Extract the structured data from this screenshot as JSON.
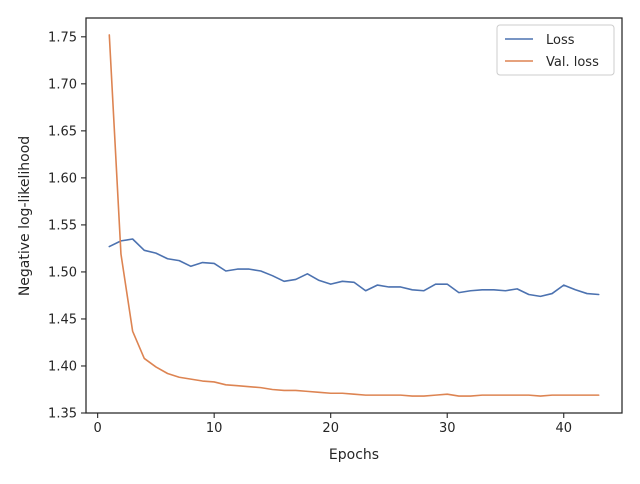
{
  "chart_data": {
    "type": "line",
    "xlabel": "Epochs",
    "ylabel": "Negative log-likelihood",
    "xlim": [
      -1,
      45
    ],
    "ylim": [
      1.35,
      1.77
    ],
    "xticks": [
      0,
      10,
      20,
      30,
      40
    ],
    "xtick_labels": [
      "0",
      "10",
      "20",
      "30",
      "40"
    ],
    "yticks": [
      1.35,
      1.4,
      1.45,
      1.5,
      1.55,
      1.6,
      1.65,
      1.7,
      1.75
    ],
    "ytick_labels": [
      "1.35",
      "1.40",
      "1.45",
      "1.50",
      "1.55",
      "1.60",
      "1.65",
      "1.70",
      "1.75"
    ],
    "grid": false,
    "legend_position": "top-right",
    "x": [
      1,
      2,
      3,
      4,
      5,
      6,
      7,
      8,
      9,
      10,
      11,
      12,
      13,
      14,
      15,
      16,
      17,
      18,
      19,
      20,
      21,
      22,
      23,
      24,
      25,
      26,
      27,
      28,
      29,
      30,
      31,
      32,
      33,
      34,
      35,
      36,
      37,
      38,
      39,
      40,
      41,
      42,
      43
    ],
    "series": [
      {
        "name": "Loss",
        "color": "#4c72b0",
        "values": [
          1.527,
          1.533,
          1.535,
          1.523,
          1.52,
          1.514,
          1.512,
          1.506,
          1.51,
          1.509,
          1.501,
          1.503,
          1.503,
          1.501,
          1.496,
          1.49,
          1.492,
          1.498,
          1.491,
          1.487,
          1.49,
          1.489,
          1.48,
          1.486,
          1.484,
          1.484,
          1.481,
          1.48,
          1.487,
          1.487,
          1.478,
          1.48,
          1.481,
          1.481,
          1.48,
          1.482,
          1.476,
          1.474,
          1.477,
          1.486,
          1.481,
          1.477,
          1.476
        ]
      },
      {
        "name": "Val. loss",
        "color": "#dd8452",
        "values": [
          1.752,
          1.519,
          1.437,
          1.408,
          1.399,
          1.392,
          1.388,
          1.386,
          1.384,
          1.383,
          1.38,
          1.379,
          1.378,
          1.377,
          1.375,
          1.374,
          1.374,
          1.373,
          1.372,
          1.371,
          1.371,
          1.37,
          1.369,
          1.369,
          1.369,
          1.369,
          1.368,
          1.368,
          1.369,
          1.37,
          1.368,
          1.368,
          1.369,
          1.369,
          1.369,
          1.369,
          1.369,
          1.368,
          1.369,
          1.369,
          1.369,
          1.369,
          1.369
        ]
      }
    ]
  }
}
